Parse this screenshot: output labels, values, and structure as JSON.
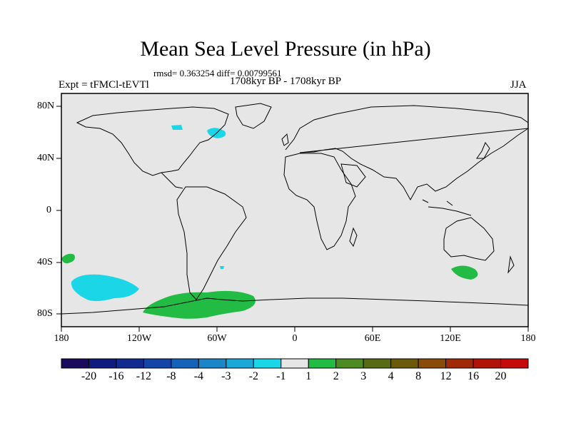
{
  "title": "Mean Sea Level Pressure (in hPa)",
  "stats": "rmsd= 0.363254 diff= 0.00799561",
  "period": "1708kyr BP - 1708kyr BP",
  "experiment": "Expt = tFMCl-tEVTl",
  "season": "JJA",
  "lat_labels": [
    "80N",
    "40N",
    "0",
    "40S",
    "80S"
  ],
  "lon_labels": [
    "180",
    "120W",
    "60W",
    "0",
    "60E",
    "120E",
    "180"
  ],
  "colorbar": {
    "labels": [
      "-20",
      "-16",
      "-12",
      "-8",
      "-4",
      "-3",
      "-2",
      "-1",
      "1",
      "2",
      "3",
      "4",
      "8",
      "12",
      "16",
      "20"
    ],
    "colors": [
      "#1a0a5e",
      "#0f1a80",
      "#102a90",
      "#1245a6",
      "#1463b8",
      "#1a86c8",
      "#1aa8d8",
      "#1ad6e6",
      "#e6e6e6",
      "#22bb44",
      "#4d8a22",
      "#586b12",
      "#6a5a0a",
      "#8a4a08",
      "#a02a08",
      "#b01408",
      "#c40a0a"
    ]
  },
  "colors": {
    "ocean": "#e6e6e6",
    "negative": "#1ad6e6",
    "positive": "#22bb44"
  }
}
